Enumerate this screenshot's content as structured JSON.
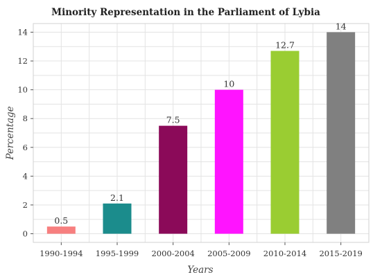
{
  "chart_data": {
    "type": "bar",
    "title": "Minority Representation in the Parliament of Lybia",
    "xlabel": "Years",
    "ylabel": "Percentage",
    "categories": [
      "1990-1994",
      "1995-1999",
      "2000-2004",
      "2005-2009",
      "2010-2014",
      "2015-2019"
    ],
    "values": [
      0.5,
      2.1,
      7.5,
      10,
      12.7,
      14
    ],
    "data_labels": [
      "0.5",
      "2.1",
      "7.5",
      "10",
      "12.7",
      "14"
    ],
    "colors": [
      "#f77f7f",
      "#1b8c8c",
      "#8b0a59",
      "#ff14ff",
      "#9acd32",
      "#808080"
    ],
    "ylim": [
      -0.6,
      14.6
    ],
    "yticks": [
      0,
      2,
      4,
      6,
      8,
      10,
      12,
      14
    ],
    "grid": true,
    "legend": false
  }
}
